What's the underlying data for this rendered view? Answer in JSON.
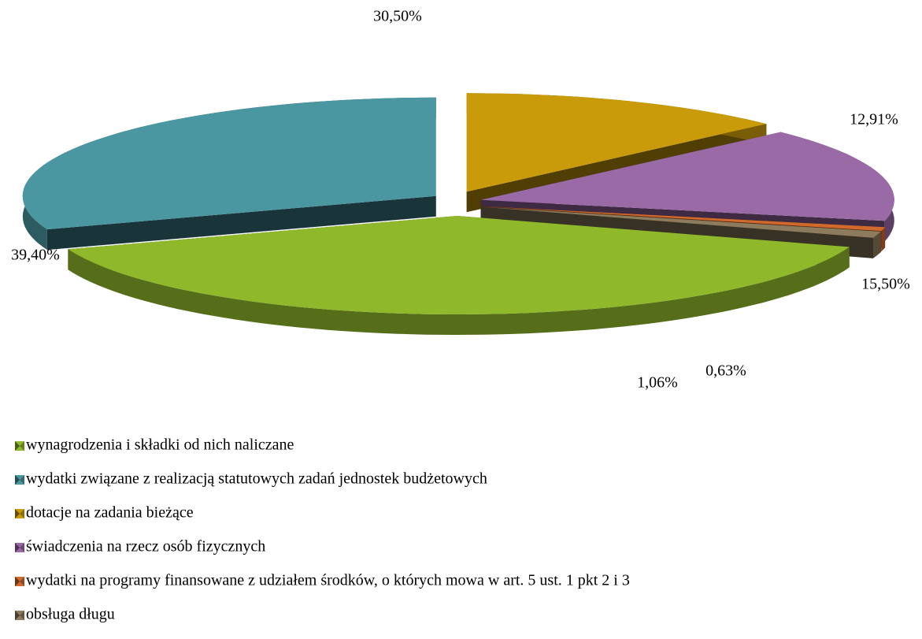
{
  "chart_data": {
    "type": "pie",
    "categories": [
      "wynagrodzenia i składki od nich naliczane",
      "wydatki związane z realizacją statutowych zadań jednostek budżetowych",
      "dotacje na zadania bieżące",
      "świadczenia na rzecz osób fizycznych",
      "wydatki na programy finansowane z udziałem środków, o których mowa w art. 5 ust. 1 pkt 2 i 3",
      "obsługa długu"
    ],
    "values": [
      39.4,
      30.5,
      12.91,
      15.5,
      0.63,
      1.06
    ],
    "value_labels": [
      "39,40%",
      "30,50%",
      "12,91%",
      "15,50%",
      "0,63%",
      "1,06%"
    ],
    "colors": [
      "#8fb82a",
      "#4a97a2",
      "#c99b0b",
      "#9a6aa6",
      "#d0692b",
      "#8c7b5c"
    ],
    "legend": "bottom"
  }
}
